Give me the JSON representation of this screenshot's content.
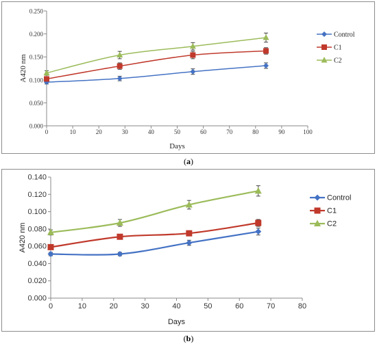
{
  "colors": {
    "Control": "#4472C4",
    "C1": "#C0392B",
    "C2": "#9BBB59"
  },
  "chart_data": [
    {
      "id": "a",
      "type": "line",
      "caption": "a",
      "xlabel": "Days",
      "ylabel": "A420 nm",
      "xlim": [
        0,
        100
      ],
      "ylim": [
        0,
        0.25
      ],
      "xticks": [
        0,
        10,
        20,
        30,
        40,
        50,
        60,
        70,
        80,
        90,
        100
      ],
      "yticks": [
        0,
        0.05,
        0.1,
        0.15,
        0.2,
        0.25
      ],
      "ytick_labels": [
        "0.000",
        "0.050",
        "0.100",
        "0.150",
        "0.200",
        "0.250"
      ],
      "legend_position": "right",
      "grid": false,
      "x": [
        0,
        28,
        56,
        84
      ],
      "series": [
        {
          "name": "Control",
          "values": [
            0.095,
            0.103,
            0.118,
            0.131
          ],
          "errors": [
            0.004,
            0.005,
            0.006,
            0.006
          ],
          "marker": "diamond"
        },
        {
          "name": "C1",
          "values": [
            0.102,
            0.13,
            0.154,
            0.163
          ],
          "errors": [
            0.005,
            0.007,
            0.008,
            0.007
          ],
          "marker": "square"
        },
        {
          "name": "C2",
          "values": [
            0.115,
            0.154,
            0.173,
            0.192
          ],
          "errors": [
            0.005,
            0.008,
            0.008,
            0.01
          ],
          "marker": "triangle"
        }
      ]
    },
    {
      "id": "b",
      "type": "line",
      "caption": "b",
      "xlabel": "Days",
      "ylabel": "A420 nm",
      "xlim": [
        0,
        80
      ],
      "ylim": [
        0,
        0.14
      ],
      "xticks": [
        0,
        10,
        20,
        30,
        40,
        50,
        60,
        70,
        80
      ],
      "yticks": [
        0,
        0.02,
        0.04,
        0.06,
        0.08,
        0.1,
        0.12,
        0.14
      ],
      "ytick_labels": [
        "0.000",
        "0.020",
        "0.040",
        "0.060",
        "0.080",
        "0.100",
        "0.120",
        "0.140"
      ],
      "legend_position": "right",
      "grid": false,
      "x": [
        0,
        22,
        44,
        66
      ],
      "series": [
        {
          "name": "Control",
          "values": [
            0.051,
            0.051,
            0.064,
            0.077
          ],
          "errors": [
            0.002,
            0.002,
            0.003,
            0.004
          ],
          "marker": "diamond"
        },
        {
          "name": "C1",
          "values": [
            0.059,
            0.071,
            0.075,
            0.087
          ],
          "errors": [
            0.002,
            0.003,
            0.003,
            0.004
          ],
          "marker": "square"
        },
        {
          "name": "C2",
          "values": [
            0.076,
            0.087,
            0.108,
            0.124
          ],
          "errors": [
            0.003,
            0.004,
            0.005,
            0.006
          ],
          "marker": "triangle"
        }
      ]
    }
  ]
}
